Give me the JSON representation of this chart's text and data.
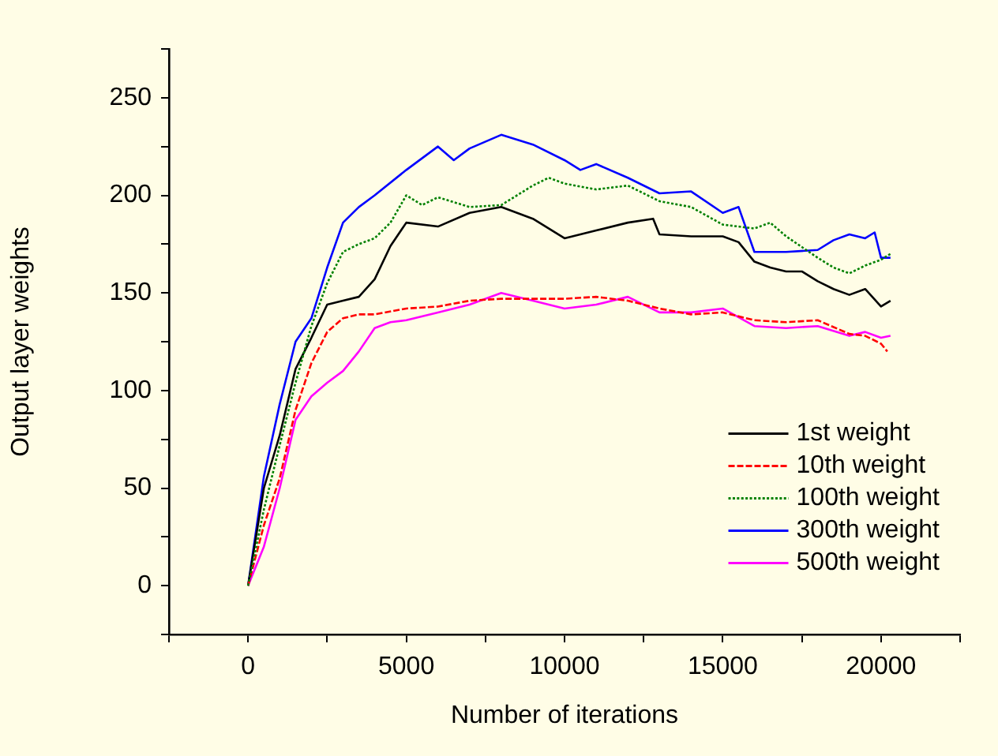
{
  "chart_data": {
    "type": "line",
    "xlabel": "Number of iterations",
    "ylabel": "Output layer weights",
    "xlim": [
      -2500,
      22500
    ],
    "ylim": [
      -25,
      275
    ],
    "xticks": [
      {
        "value": -2500,
        "label": null
      },
      0,
      {
        "value": 2500,
        "label": null
      },
      5000,
      {
        "value": 7500,
        "label": null
      },
      10000,
      {
        "value": 12500,
        "label": null
      },
      15000,
      {
        "value": 17500,
        "label": null
      },
      20000,
      {
        "value": 22500,
        "label": null
      }
    ],
    "yticks": [
      {
        "value": -25,
        "label": null
      },
      0,
      {
        "value": 25,
        "label": null
      },
      50,
      {
        "value": 75,
        "label": null
      },
      100,
      {
        "value": 125,
        "label": null
      },
      150,
      {
        "value": 175,
        "label": null
      },
      200,
      {
        "value": 225,
        "label": null
      },
      250,
      {
        "value": 275,
        "label": null
      }
    ],
    "grid": false,
    "legend": "bottom right",
    "marker": "none",
    "series": [
      {
        "name": "1st weight",
        "color": "#000000",
        "line_style": "solid",
        "x": [
          0,
          500,
          1000,
          1500,
          2000,
          2500,
          3000,
          3500,
          4000,
          4500,
          5000,
          6000,
          7000,
          8000,
          8500,
          9000,
          10000,
          11000,
          12000,
          12800,
          13000,
          14000,
          15000,
          15500,
          16000,
          16500,
          17000,
          17500,
          18000,
          18500,
          19000,
          19500,
          20000,
          20300
        ],
        "values": [
          0,
          50,
          77,
          111,
          127,
          144,
          146,
          148,
          157,
          174,
          186,
          184,
          191,
          194,
          191,
          188,
          178,
          182,
          186,
          188,
          180,
          179,
          179,
          176,
          166,
          163,
          161,
          161,
          156,
          152,
          149,
          152,
          143,
          146
        ]
      },
      {
        "name": "10th weight",
        "color": "#ff0000",
        "line_style": "dashed",
        "x": [
          0,
          500,
          1000,
          1500,
          2000,
          2500,
          3000,
          3500,
          4000,
          5000,
          6000,
          7000,
          8000,
          9000,
          10000,
          11000,
          12000,
          13000,
          14000,
          15000,
          16000,
          17000,
          18000,
          19000,
          19500,
          20000,
          20200
        ],
        "values": [
          0,
          31,
          55,
          90,
          114,
          130,
          137,
          139,
          139,
          142,
          143,
          146,
          147,
          147,
          147,
          148,
          146,
          142,
          139,
          140,
          136,
          135,
          136,
          129,
          128,
          124,
          120
        ]
      },
      {
        "name": "100th weight",
        "color": "#008000",
        "line_style": "dotted",
        "x": [
          0,
          500,
          1000,
          1500,
          2000,
          2500,
          3000,
          3500,
          4000,
          4500,
          5000,
          5500,
          6000,
          7000,
          8000,
          9000,
          9500,
          10000,
          11000,
          12000,
          13000,
          14000,
          15000,
          16000,
          16500,
          17000,
          18000,
          18500,
          19000,
          19500,
          20000,
          20300
        ],
        "values": [
          0,
          39,
          72,
          104,
          133,
          155,
          171,
          175,
          178,
          186,
          200,
          195,
          199,
          194,
          195,
          205,
          209,
          206,
          203,
          205,
          197,
          194,
          185,
          183,
          186,
          179,
          168,
          163,
          160,
          164,
          167,
          170
        ]
      },
      {
        "name": "300th weight",
        "color": "#0000ff",
        "line_style": "solid",
        "x": [
          0,
          500,
          1000,
          1500,
          2000,
          2500,
          3000,
          3500,
          4000,
          5000,
          6000,
          6500,
          7000,
          8000,
          9000,
          10000,
          10500,
          11000,
          12000,
          13000,
          14000,
          15000,
          15500,
          16000,
          17000,
          18000,
          18500,
          19000,
          19500,
          19800,
          20000,
          20300
        ],
        "values": [
          0,
          56,
          93,
          125,
          137,
          163,
          186,
          194,
          200,
          213,
          225,
          218,
          224,
          231,
          226,
          218,
          213,
          216,
          209,
          201,
          202,
          191,
          194,
          171,
          171,
          172,
          177,
          180,
          178,
          181,
          168,
          168
        ]
      },
      {
        "name": "500th weight",
        "color": "#ff00ff",
        "line_style": "solid",
        "x": [
          0,
          500,
          1000,
          1500,
          2000,
          2500,
          3000,
          3500,
          4000,
          4500,
          5000,
          6000,
          7000,
          8000,
          9000,
          10000,
          11000,
          12000,
          13000,
          14000,
          15000,
          16000,
          17000,
          18000,
          19000,
          19500,
          20000,
          20300
        ],
        "values": [
          0,
          20,
          50,
          85,
          97,
          104,
          110,
          120,
          132,
          135,
          136,
          140,
          144,
          150,
          146,
          142,
          144,
          148,
          140,
          140,
          142,
          133,
          132,
          133,
          128,
          130,
          127,
          128
        ]
      }
    ]
  }
}
